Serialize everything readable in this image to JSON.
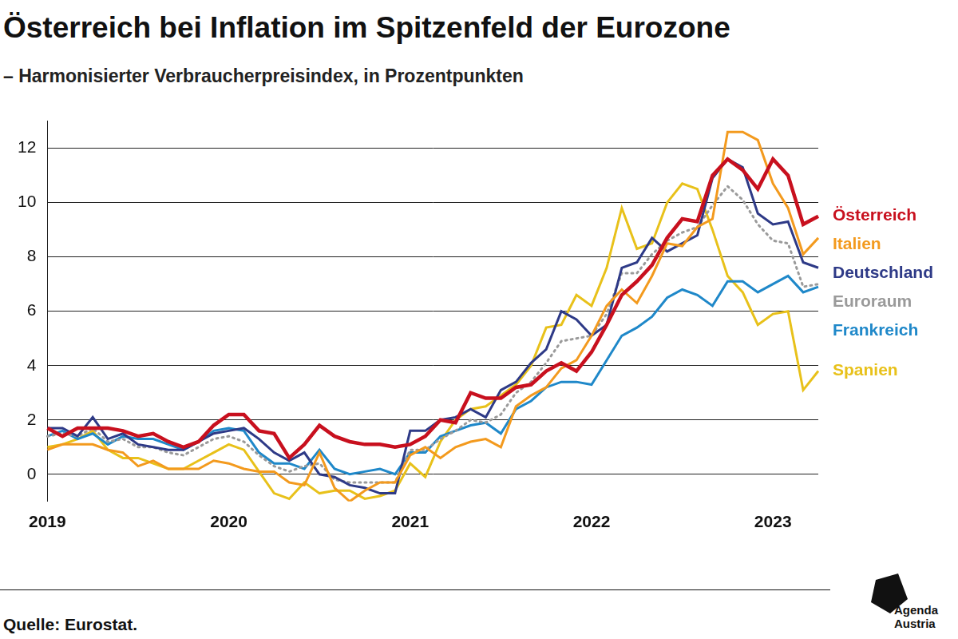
{
  "chart_data": {
    "type": "line",
    "title": "Österreich bei Inflation im Spitzenfeld der Eurozone",
    "subtitle": "– Harmonisierter Verbraucherpreisindex, in Prozentpunkten",
    "source": "Quelle: Eurostat.",
    "branding": [
      "Agenda",
      "Austria"
    ],
    "categories": [
      "2019",
      null,
      null,
      null,
      null,
      null,
      null,
      null,
      null,
      null,
      null,
      null,
      "2020",
      null,
      null,
      null,
      null,
      null,
      null,
      null,
      null,
      null,
      null,
      null,
      "2021",
      null,
      null,
      null,
      null,
      null,
      null,
      null,
      null,
      null,
      null,
      null,
      "2022",
      null,
      null,
      null,
      null,
      null,
      null,
      null,
      null,
      null,
      null,
      null,
      "2023",
      null,
      null,
      null
    ],
    "ylim": [
      -1,
      13
    ],
    "yticks": [
      0,
      2,
      4,
      6,
      8,
      10,
      12
    ],
    "grid": "y",
    "series": [
      {
        "name": "Österreich",
        "color": "#c8101e",
        "line_style": "solid",
        "values": [
          1.7,
          1.4,
          1.7,
          1.7,
          1.7,
          1.6,
          1.4,
          1.5,
          1.2,
          1.0,
          1.2,
          1.8,
          2.2,
          2.2,
          1.6,
          1.5,
          0.6,
          1.1,
          1.8,
          1.4,
          1.2,
          1.1,
          1.1,
          1.0,
          1.1,
          1.4,
          2.0,
          1.9,
          3.0,
          2.8,
          2.8,
          3.2,
          3.3,
          3.8,
          4.1,
          3.8,
          4.5,
          5.5,
          6.6,
          7.1,
          7.7,
          8.7,
          9.4,
          9.3,
          11.0,
          11.6,
          11.2,
          10.5,
          11.6,
          11.0,
          9.2,
          9.5
        ]
      },
      {
        "name": "Italien",
        "color": "#f39a1e",
        "line_style": "solid",
        "values": [
          0.9,
          1.1,
          1.1,
          1.1,
          0.9,
          0.8,
          0.3,
          0.5,
          0.2,
          0.2,
          0.2,
          0.5,
          0.4,
          0.2,
          0.1,
          0.1,
          -0.3,
          -0.4,
          0.8,
          -0.5,
          -1.0,
          -0.6,
          -0.3,
          -0.3,
          0.7,
          1.0,
          0.6,
          1.0,
          1.2,
          1.3,
          1.0,
          2.5,
          2.9,
          3.2,
          3.9,
          4.2,
          5.1,
          6.2,
          6.8,
          6.3,
          7.3,
          8.5,
          8.4,
          9.1,
          9.4,
          12.6,
          12.6,
          12.3,
          10.7,
          9.8,
          8.1,
          8.7
        ]
      },
      {
        "name": "Deutschland",
        "color": "#2e3a87",
        "line_style": "solid",
        "values": [
          1.7,
          1.7,
          1.4,
          2.1,
          1.3,
          1.5,
          1.1,
          1.0,
          0.9,
          0.9,
          1.2,
          1.5,
          1.6,
          1.7,
          1.3,
          0.8,
          0.5,
          0.8,
          0.0,
          -0.1,
          -0.4,
          -0.5,
          -0.7,
          -0.7,
          1.6,
          1.6,
          2.0,
          2.1,
          2.4,
          2.1,
          3.1,
          3.4,
          4.1,
          4.6,
          6.0,
          5.7,
          5.1,
          5.5,
          7.6,
          7.8,
          8.7,
          8.2,
          8.5,
          8.8,
          10.9,
          11.6,
          11.3,
          9.6,
          9.2,
          9.3,
          7.8,
          7.6
        ]
      },
      {
        "name": "Euroraum",
        "color": "#9a9a9a",
        "line_style": "dotted",
        "values": [
          1.4,
          1.5,
          1.4,
          1.7,
          1.2,
          1.3,
          1.0,
          1.0,
          0.8,
          0.7,
          1.0,
          1.3,
          1.4,
          1.2,
          0.7,
          0.3,
          0.1,
          0.3,
          0.4,
          -0.2,
          -0.3,
          -0.3,
          -0.3,
          -0.3,
          0.9,
          0.9,
          1.3,
          1.6,
          2.0,
          1.9,
          2.2,
          3.0,
          3.4,
          4.1,
          4.9,
          5.0,
          5.1,
          5.9,
          7.4,
          7.4,
          8.1,
          8.6,
          8.9,
          9.1,
          9.9,
          10.6,
          10.1,
          9.2,
          8.6,
          8.5,
          6.9,
          7.0
        ]
      },
      {
        "name": "Frankreich",
        "color": "#1f88c9",
        "line_style": "solid",
        "values": [
          1.4,
          1.6,
          1.3,
          1.5,
          1.1,
          1.4,
          1.3,
          1.3,
          1.1,
          0.9,
          1.2,
          1.6,
          1.7,
          1.6,
          0.8,
          0.4,
          0.4,
          0.2,
          0.9,
          0.2,
          0.0,
          0.1,
          0.2,
          0.0,
          0.8,
          0.8,
          1.4,
          1.6,
          1.8,
          1.9,
          1.5,
          2.4,
          2.7,
          3.2,
          3.4,
          3.4,
          3.3,
          4.2,
          5.1,
          5.4,
          5.8,
          6.5,
          6.8,
          6.6,
          6.2,
          7.1,
          7.1,
          6.7,
          7.0,
          7.3,
          6.7,
          6.9
        ]
      },
      {
        "name": "Spanien",
        "color": "#e8c11a",
        "line_style": "solid",
        "values": [
          1.0,
          1.1,
          1.3,
          1.6,
          0.9,
          0.6,
          0.6,
          0.4,
          0.2,
          0.2,
          0.5,
          0.8,
          1.1,
          0.9,
          0.1,
          -0.7,
          -0.9,
          -0.3,
          -0.7,
          -0.6,
          -0.6,
          -0.9,
          -0.8,
          -0.6,
          0.4,
          -0.1,
          1.2,
          2.0,
          2.4,
          2.5,
          2.9,
          3.3,
          4.0,
          5.4,
          5.5,
          6.6,
          6.2,
          7.6,
          9.8,
          8.3,
          8.5,
          10.0,
          10.7,
          10.5,
          9.0,
          7.3,
          6.7,
          5.5,
          5.9,
          6.0,
          3.1,
          3.8
        ]
      }
    ]
  }
}
